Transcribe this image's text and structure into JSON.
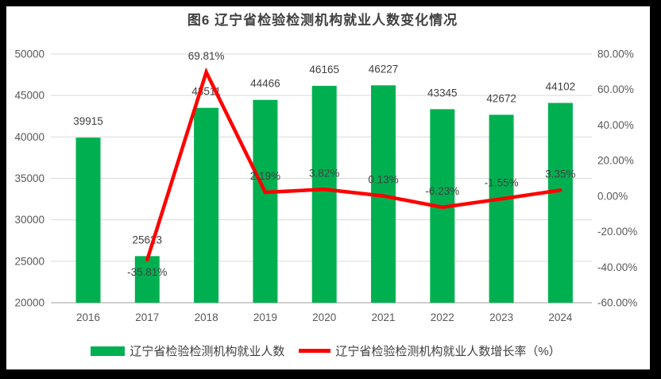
{
  "title": "图6  辽宁省检验检测机构就业人数变化情况",
  "colors": {
    "frame": "#000000",
    "background": "#ffffff",
    "gridline": "#d9d9d9",
    "axis_line": "#bfbfbf",
    "tick_label": "#595959",
    "data_label": "#404040",
    "title_text": "#404040",
    "legend_text": "#404040",
    "bar": "#00b050",
    "line": "#ff0000"
  },
  "chart_data": {
    "type": "combo",
    "title": "图6  辽宁省检验检测机构就业人数变化情况",
    "categories": [
      "2016",
      "2017",
      "2018",
      "2019",
      "2020",
      "2021",
      "2022",
      "2023",
      "2024"
    ],
    "series": [
      {
        "name": "辽宁省检验检测机构就业人数",
        "type": "bar",
        "axis": "left",
        "color": "#00b050",
        "values": [
          39915,
          25623,
          43511,
          44466,
          46165,
          46227,
          43345,
          42672,
          44102
        ],
        "labels": [
          "39915",
          "25623",
          "43511",
          "44466",
          "46165",
          "46227",
          "43345",
          "42672",
          "44102"
        ]
      },
      {
        "name": "辽宁省检验检测机构就业人数增长率（%）",
        "type": "line",
        "axis": "right",
        "color": "#ff0000",
        "values": [
          null,
          -35.81,
          69.81,
          2.19,
          3.82,
          0.13,
          -6.23,
          -1.55,
          3.35
        ],
        "labels": [
          "",
          "-35.81%",
          "69.81%",
          "2.19%",
          "3.82%",
          "0.13%",
          "-6.23%",
          "-1.55%",
          "3.35%"
        ]
      }
    ],
    "left_axis": {
      "min": 20000,
      "max": 50000,
      "step": 5000,
      "ticks": [
        "50000",
        "45000",
        "40000",
        "35000",
        "30000",
        "25000",
        "20000"
      ]
    },
    "right_axis": {
      "min": -60,
      "max": 80,
      "step": 20,
      "ticks": [
        "80.00%",
        "60.00%",
        "40.00%",
        "20.00%",
        "0.00%",
        "-20.00%",
        "-40.00%",
        "-60.00%"
      ]
    },
    "grid": true,
    "legend_position": "bottom"
  }
}
